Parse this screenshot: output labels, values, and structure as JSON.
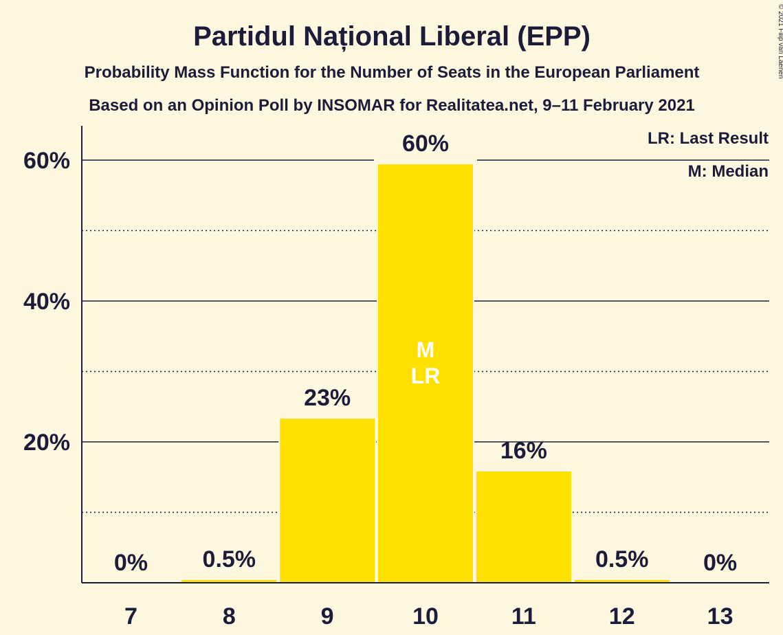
{
  "chart_data": {
    "type": "bar",
    "title": "Partidul Național Liberal (EPP)",
    "subtitle_lines": [
      "Probability Mass Function for the Number of Seats in the European Parliament",
      "Based on an Opinion Poll by INSOMAR for Realitatea.net, 9–11 February 2021"
    ],
    "categories": [
      "7",
      "8",
      "9",
      "10",
      "11",
      "12",
      "13"
    ],
    "values": [
      0,
      0.5,
      23.4,
      59.5,
      15.9,
      0.5,
      0
    ],
    "value_labels": [
      "0%",
      "0.5%",
      "23%",
      "60%",
      "16%",
      "0.5%",
      "0%"
    ],
    "ylim": [
      0,
      65
    ],
    "major_ticks": [
      20,
      40,
      60
    ],
    "tick_labels": [
      "20%",
      "40%",
      "60%"
    ],
    "minor_gridlines": [
      10,
      30,
      50
    ],
    "grid": true,
    "bar_color": "#ffe000",
    "background": "#fff8e1",
    "text_color": "#1c1c3a",
    "median_category": "10",
    "last_result_category": "10",
    "median_marker": "M",
    "last_result_marker": "LR",
    "legend": [
      "LR: Last Result",
      "M: Median"
    ],
    "legend_position": "top-right",
    "copyright": "© 2021 Filip van Laenen"
  }
}
